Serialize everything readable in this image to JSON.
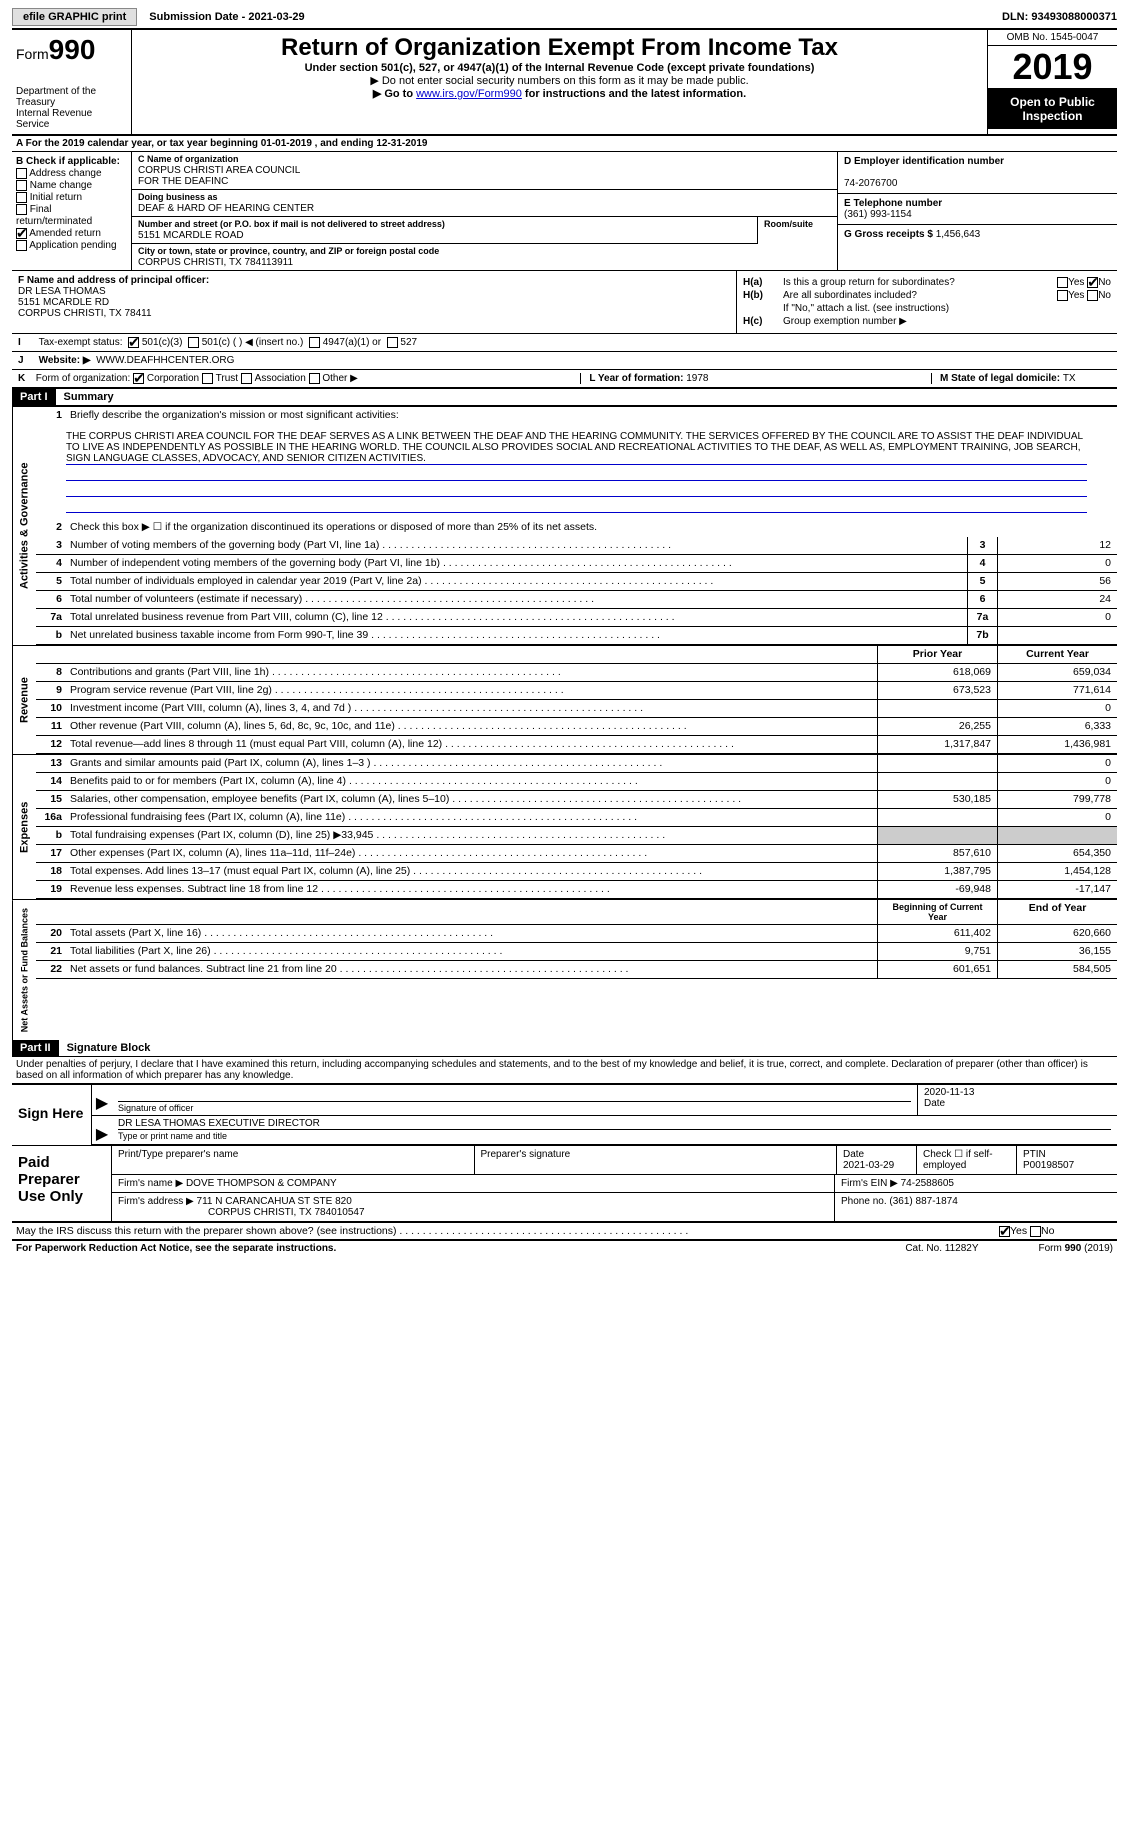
{
  "topbar": {
    "efile": "efile GRAPHIC print",
    "submission_label": "Submission Date - ",
    "submission_date": "2021-03-29",
    "dln_label": "DLN: ",
    "dln": "93493088000371"
  },
  "header": {
    "form_prefix": "Form",
    "form_number": "990",
    "dept": "Department of the Treasury\nInternal Revenue Service",
    "title": "Return of Organization Exempt From Income Tax",
    "subtitle": "Under section 501(c), 527, or 4947(a)(1) of the Internal Revenue Code (except private foundations)",
    "note1": "▶ Do not enter social security numbers on this form as it may be made public.",
    "note2_pre": "▶ Go to ",
    "note2_link": "www.irs.gov/Form990",
    "note2_post": " for instructions and the latest information.",
    "omb": "OMB No. 1545-0047",
    "year": "2019",
    "inspection": "Open to Public Inspection"
  },
  "row_a": "A For the 2019 calendar year, or tax year beginning 01-01-2019    , and ending 12-31-2019",
  "box_b": {
    "title": "B Check if applicable:",
    "opts": [
      "Address change",
      "Name change",
      "Initial return",
      "Final return/terminated",
      "Amended return",
      "Application pending"
    ],
    "checked": [
      false,
      false,
      false,
      false,
      true,
      false
    ]
  },
  "box_c": {
    "name_lbl": "C Name of organization",
    "name": "CORPUS CHRISTI AREA COUNCIL\nFOR THE DEAFINC",
    "dba_lbl": "Doing business as",
    "dba": "DEAF & HARD OF HEARING CENTER",
    "addr_lbl": "Number and street (or P.O. box if mail is not delivered to street address)",
    "addr": "5151 MCARDLE ROAD",
    "room_lbl": "Room/suite",
    "city_lbl": "City or town, state or province, country, and ZIP or foreign postal code",
    "city": "CORPUS CHRISTI, TX  784113911"
  },
  "box_d": {
    "ein_lbl": "D Employer identification number",
    "ein": "74-2076700",
    "tel_lbl": "E Telephone number",
    "tel": "(361) 993-1154",
    "gross_lbl": "G Gross receipts $ ",
    "gross": "1,456,643"
  },
  "box_f": {
    "lbl": "F Name and address of principal officer:",
    "name": "DR LESA THOMAS",
    "addr1": "5151 MCARDLE RD",
    "addr2": "CORPUS CHRISTI, TX  78411"
  },
  "box_h": {
    "ha_lbl": "H(a)",
    "ha_txt": "Is this a group return for subordinates?",
    "ha_no": true,
    "hb_lbl": "H(b)",
    "hb_txt": "Are all subordinates included?",
    "hb_note": "If \"No,\" attach a list. (see instructions)",
    "hc_lbl": "H(c)",
    "hc_txt": "Group exemption number ▶"
  },
  "row_i": {
    "lbl": "I",
    "txt": "Tax-exempt status:",
    "opts": [
      "501(c)(3)",
      "501(c) (  ) ◀ (insert no.)",
      "4947(a)(1) or",
      "527"
    ],
    "checked": [
      true,
      false,
      false,
      false
    ]
  },
  "row_j": {
    "lbl": "J",
    "txt": "Website: ▶",
    "val": "WWW.DEAFHHCENTER.ORG"
  },
  "row_k": {
    "lbl": "K",
    "txt": "Form of organization:",
    "opts": [
      "Corporation",
      "Trust",
      "Association",
      "Other ▶"
    ],
    "checked": [
      true,
      false,
      false,
      false
    ],
    "l_lbl": "L Year of formation: ",
    "l_val": "1978",
    "m_lbl": "M State of legal domicile: ",
    "m_val": "TX"
  },
  "part1": {
    "header": "Part I",
    "title": "Summary",
    "line1_lbl": "1",
    "line1_txt": "Briefly describe the organization's mission or most significant activities:",
    "mission": "THE CORPUS CHRISTI AREA COUNCIL FOR THE DEAF SERVES AS A LINK BETWEEN THE DEAF AND THE HEARING COMMUNITY. THE SERVICES OFFERED BY THE COUNCIL ARE TO ASSIST THE DEAF INDIVIDUAL TO LIVE AS INDEPENDENTLY AS POSSIBLE IN THE HEARING WORLD. THE COUNCIL ALSO PROVIDES SOCIAL AND RECREATIONAL ACTIVITIES TO THE DEAF, AS WELL AS, EMPLOYMENT TRAINING, JOB SEARCH, SIGN LANGUAGE CLASSES, ADVOCACY, AND SENIOR CITIZEN ACTIVITIES.",
    "line2": "Check this box ▶ ☐ if the organization discontinued its operations or disposed of more than 25% of its net assets.",
    "governance_lines": [
      {
        "n": "3",
        "t": "Number of voting members of the governing body (Part VI, line 1a)",
        "r": "3",
        "v": "12"
      },
      {
        "n": "4",
        "t": "Number of independent voting members of the governing body (Part VI, line 1b)",
        "r": "4",
        "v": "0"
      },
      {
        "n": "5",
        "t": "Total number of individuals employed in calendar year 2019 (Part V, line 2a)",
        "r": "5",
        "v": "56"
      },
      {
        "n": "6",
        "t": "Total number of volunteers (estimate if necessary)",
        "r": "6",
        "v": "24"
      },
      {
        "n": "7a",
        "t": "Total unrelated business revenue from Part VIII, column (C), line 12",
        "r": "7a",
        "v": "0"
      },
      {
        "n": "b",
        "t": "Net unrelated business taxable income from Form 990-T, line 39",
        "r": "7b",
        "v": ""
      }
    ],
    "col_headers": {
      "prior": "Prior Year",
      "current": "Current Year"
    },
    "revenue_lines": [
      {
        "n": "8",
        "t": "Contributions and grants (Part VIII, line 1h)",
        "p": "618,069",
        "c": "659,034"
      },
      {
        "n": "9",
        "t": "Program service revenue (Part VIII, line 2g)",
        "p": "673,523",
        "c": "771,614"
      },
      {
        "n": "10",
        "t": "Investment income (Part VIII, column (A), lines 3, 4, and 7d )",
        "p": "",
        "c": "0"
      },
      {
        "n": "11",
        "t": "Other revenue (Part VIII, column (A), lines 5, 6d, 8c, 9c, 10c, and 11e)",
        "p": "26,255",
        "c": "6,333"
      },
      {
        "n": "12",
        "t": "Total revenue—add lines 8 through 11 (must equal Part VIII, column (A), line 12)",
        "p": "1,317,847",
        "c": "1,436,981"
      }
    ],
    "expense_lines": [
      {
        "n": "13",
        "t": "Grants and similar amounts paid (Part IX, column (A), lines 1–3 )",
        "p": "",
        "c": "0"
      },
      {
        "n": "14",
        "t": "Benefits paid to or for members (Part IX, column (A), line 4)",
        "p": "",
        "c": "0"
      },
      {
        "n": "15",
        "t": "Salaries, other compensation, employee benefits (Part IX, column (A), lines 5–10)",
        "p": "530,185",
        "c": "799,778"
      },
      {
        "n": "16a",
        "t": "Professional fundraising fees (Part IX, column (A), line 11e)",
        "p": "",
        "c": "0"
      },
      {
        "n": "b",
        "t": "Total fundraising expenses (Part IX, column (D), line 25) ▶33,945",
        "p": "shade",
        "c": "shade"
      },
      {
        "n": "17",
        "t": "Other expenses (Part IX, column (A), lines 11a–11d, 11f–24e)",
        "p": "857,610",
        "c": "654,350"
      },
      {
        "n": "18",
        "t": "Total expenses. Add lines 13–17 (must equal Part IX, column (A), line 25)",
        "p": "1,387,795",
        "c": "1,454,128"
      },
      {
        "n": "19",
        "t": "Revenue less expenses. Subtract line 18 from line 12",
        "p": "-69,948",
        "c": "-17,147"
      }
    ],
    "balance_headers": {
      "begin": "Beginning of Current Year",
      "end": "End of Year"
    },
    "balance_lines": [
      {
        "n": "20",
        "t": "Total assets (Part X, line 16)",
        "p": "611,402",
        "c": "620,660"
      },
      {
        "n": "21",
        "t": "Total liabilities (Part X, line 26)",
        "p": "9,751",
        "c": "36,155"
      },
      {
        "n": "22",
        "t": "Net assets or fund balances. Subtract line 21 from line 20",
        "p": "601,651",
        "c": "584,505"
      }
    ],
    "side_labels": {
      "gov": "Activities & Governance",
      "rev": "Revenue",
      "exp": "Expenses",
      "bal": "Net Assets or Fund Balances"
    }
  },
  "part2": {
    "header": "Part II",
    "title": "Signature Block",
    "declaration": "Under penalties of perjury, I declare that I have examined this return, including accompanying schedules and statements, and to the best of my knowledge and belief, it is true, correct, and complete. Declaration of preparer (other than officer) is based on all information of which preparer has any knowledge."
  },
  "sign": {
    "label": "Sign Here",
    "sig_lbl": "Signature of officer",
    "date_val": "2020-11-13",
    "date_lbl": "Date",
    "name": "DR LESA THOMAS EXECUTIVE DIRECTOR",
    "name_lbl": "Type or print name and title"
  },
  "paid": {
    "label": "Paid Preparer Use Only",
    "r1": {
      "c1_lbl": "Print/Type preparer's name",
      "c2_lbl": "Preparer's signature",
      "c3_lbl": "Date",
      "c3_val": "2021-03-29",
      "c4_lbl": "Check ☐ if self-employed",
      "c5_lbl": "PTIN",
      "c5_val": "P00198507"
    },
    "r2": {
      "lbl": "Firm's name    ▶",
      "val": "DOVE THOMPSON & COMPANY",
      "ein_lbl": "Firm's EIN ▶",
      "ein": "74-2588605"
    },
    "r3": {
      "lbl": "Firm's address ▶",
      "val": "711 N CARANCAHUA ST STE 820",
      "phone_lbl": "Phone no.",
      "phone": "(361) 887-1874"
    },
    "r3b": "CORPUS CHRISTI, TX  784010547"
  },
  "discuss": {
    "txt": "May the IRS discuss this return with the preparer shown above? (see instructions)",
    "yes": true
  },
  "footer": {
    "left": "For Paperwork Reduction Act Notice, see the separate instructions.",
    "mid": "Cat. No. 11282Y",
    "right": "Form 990 (2019)"
  }
}
